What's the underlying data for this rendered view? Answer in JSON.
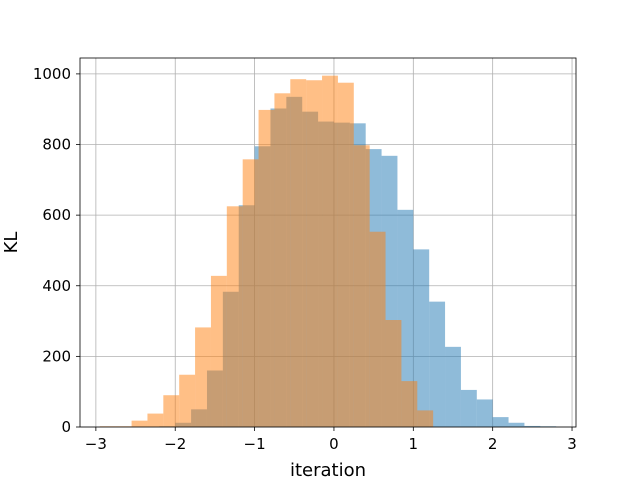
{
  "chart_data": {
    "type": "bar",
    "subtype": "overlapping-histogram",
    "title": "",
    "xlabel": "iteration",
    "ylabel": "KL",
    "xlim": [
      -3.2,
      3.05
    ],
    "ylim": [
      0,
      1045
    ],
    "xticks": [
      -3,
      -2,
      -1,
      0,
      1,
      2,
      3
    ],
    "xtick_labels": [
      "−3",
      "−2",
      "−1",
      "0",
      "1",
      "2",
      "3"
    ],
    "yticks": [
      0,
      200,
      400,
      600,
      800,
      1000
    ],
    "ytick_labels": [
      "0",
      "200",
      "400",
      "600",
      "800",
      "1000"
    ],
    "grid": true,
    "legend": "none",
    "series": [
      {
        "color": "#1f77b4",
        "opacity": 0.5,
        "bins": [
          [
            -2.2,
            -2.0,
            2
          ],
          [
            -2.0,
            -1.8,
            12
          ],
          [
            -1.8,
            -1.6,
            50
          ],
          [
            -1.6,
            -1.4,
            160
          ],
          [
            -1.4,
            -1.2,
            383
          ],
          [
            -1.2,
            -1.0,
            628
          ],
          [
            -1.0,
            -0.8,
            795
          ],
          [
            -0.8,
            -0.6,
            902
          ],
          [
            -0.6,
            -0.4,
            935
          ],
          [
            -0.4,
            -0.2,
            893
          ],
          [
            -0.2,
            0.0,
            865
          ],
          [
            0.0,
            0.2,
            862
          ],
          [
            0.2,
            0.4,
            860
          ],
          [
            0.4,
            0.6,
            787
          ],
          [
            0.6,
            0.8,
            768
          ],
          [
            0.8,
            1.0,
            615
          ],
          [
            1.0,
            1.2,
            503
          ],
          [
            1.2,
            1.4,
            355
          ],
          [
            1.4,
            1.6,
            227
          ],
          [
            1.6,
            1.8,
            105
          ],
          [
            1.8,
            2.0,
            78
          ],
          [
            2.0,
            2.2,
            28
          ],
          [
            2.2,
            2.4,
            12
          ],
          [
            2.4,
            2.6,
            3
          ],
          [
            2.6,
            2.8,
            2
          ]
        ]
      },
      {
        "color": "#ff7f0e",
        "opacity": 0.5,
        "bins": [
          [
            -2.95,
            -2.75,
            2
          ],
          [
            -2.75,
            -2.55,
            2
          ],
          [
            -2.55,
            -2.35,
            18
          ],
          [
            -2.35,
            -2.15,
            38
          ],
          [
            -2.15,
            -1.95,
            90
          ],
          [
            -1.95,
            -1.75,
            148
          ],
          [
            -1.75,
            -1.55,
            282
          ],
          [
            -1.55,
            -1.35,
            428
          ],
          [
            -1.35,
            -1.15,
            625
          ],
          [
            -1.15,
            -0.95,
            758
          ],
          [
            -0.95,
            -0.75,
            898
          ],
          [
            -0.75,
            -0.55,
            945
          ],
          [
            -0.55,
            -0.35,
            985
          ],
          [
            -0.35,
            -0.15,
            982
          ],
          [
            -0.15,
            0.05,
            995
          ],
          [
            0.05,
            0.25,
            975
          ],
          [
            0.25,
            0.45,
            798
          ],
          [
            0.45,
            0.65,
            553
          ],
          [
            0.65,
            0.85,
            303
          ],
          [
            0.85,
            1.05,
            130
          ],
          [
            1.05,
            1.25,
            47
          ]
        ]
      }
    ]
  }
}
